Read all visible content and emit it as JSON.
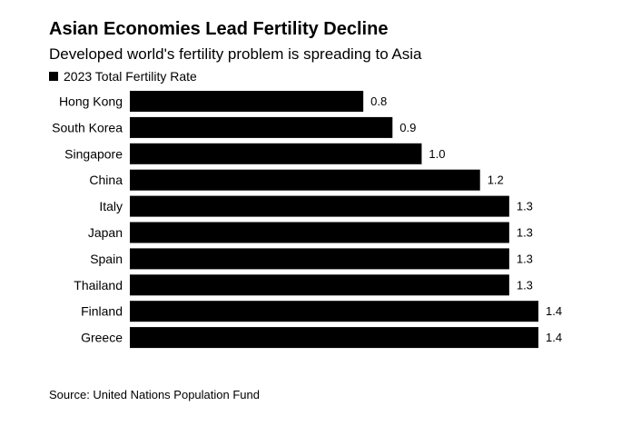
{
  "chart_data": {
    "type": "bar",
    "orientation": "horizontal",
    "title": "Asian Economies Lead Fertility Decline",
    "subtitle": "Developed world's fertility problem is spreading to Asia",
    "legend": [
      "2023 Total Fertility Rate"
    ],
    "categories": [
      "Hong Kong",
      "South Korea",
      "Singapore",
      "China",
      "Italy",
      "Japan",
      "Spain",
      "Thailand",
      "Finland",
      "Greece"
    ],
    "values": [
      0.8,
      0.9,
      1.0,
      1.2,
      1.3,
      1.3,
      1.3,
      1.3,
      1.4,
      1.4
    ],
    "value_labels": [
      "0.8",
      "0.9",
      "1.0",
      "1.2",
      "1.3",
      "1.3",
      "1.3",
      "1.3",
      "1.4",
      "1.4"
    ],
    "xlabel": "",
    "ylabel": "",
    "xlim": [
      0,
      1.4
    ],
    "bar_color": "#000000",
    "source": "Source: United Nations Population Fund"
  }
}
